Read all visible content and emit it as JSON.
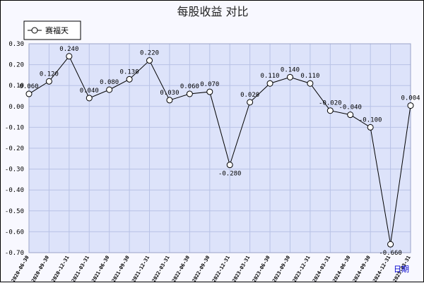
{
  "colors": {
    "plot_bg": "#dde3fa",
    "grid": "#b8c2e6",
    "line": "#000000",
    "marker_fill": "#ffffff",
    "frame": "#000000",
    "unit_text": "#0000cc"
  },
  "chart_data": {
    "type": "line",
    "title": "每股收益  对比",
    "legend": {
      "entries": [
        "赛福天"
      ],
      "placement": "top-left"
    },
    "xlabel": "日期",
    "ylabel": "",
    "ylim": [
      -0.7,
      0.3
    ],
    "yticks": [
      0.3,
      0.2,
      0.1,
      0.0,
      -0.1,
      -0.2,
      -0.3,
      -0.4,
      -0.5,
      -0.6,
      -0.7
    ],
    "ytick_labels": [
      "0.30",
      "0.20",
      "0.10",
      "0.00",
      "-0.10",
      "-0.20",
      "-0.30",
      "-0.40",
      "-0.50",
      "-0.60",
      "-0.70"
    ],
    "grid": true,
    "categories": [
      "2020-06-30",
      "2020-09-30",
      "2020-12-31",
      "2021-03-31",
      "2021-06-30",
      "2021-09-30",
      "2021-12-31",
      "2022-03-31",
      "2022-06-30",
      "2022-09-30",
      "2022-12-31",
      "2023-03-31",
      "2023-06-30",
      "2023-09-30",
      "2023-12-31",
      "2024-03-31",
      "2024-06-30",
      "2024-09-30",
      "2024-12-31",
      "2025-03-31"
    ],
    "series": [
      {
        "name": "赛福天",
        "values": [
          0.06,
          0.12,
          0.24,
          0.04,
          0.08,
          0.13,
          0.22,
          0.03,
          0.06,
          0.07,
          -0.28,
          0.02,
          0.11,
          0.14,
          0.11,
          -0.02,
          -0.04,
          -0.1,
          -0.66,
          0.004
        ],
        "labels": [
          "0.060",
          "0.120",
          "0.240",
          "0.040",
          "0.080",
          "0.130",
          "0.220",
          "0.030",
          "0.060",
          "0.070",
          "-0.280",
          "0.020",
          "0.110",
          "0.140",
          "0.110",
          "-0.020",
          "-0.040",
          "-0.100",
          "-0.660",
          "0.004"
        ]
      }
    ]
  }
}
